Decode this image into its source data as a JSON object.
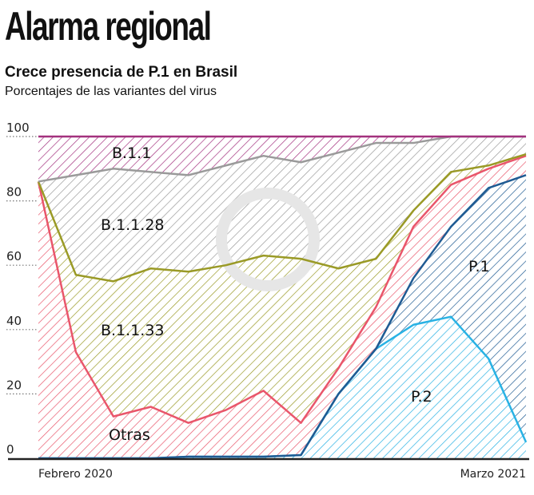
{
  "header": {
    "title": "Alarma regional",
    "subtitle": "Crece presencia de P.1 en Brasil",
    "description": "Porcentajes de las variantes del virus"
  },
  "chart_data": {
    "type": "area",
    "stacked": true,
    "title": "Crece presencia de P.1 en Brasil",
    "subtitle": "Porcentajes de las variantes del virus",
    "x_tick_labels": [
      "Febrero 2020",
      "Marzo 2021"
    ],
    "y_ticks": [
      0,
      20,
      40,
      60,
      80,
      100
    ],
    "ylim": [
      0,
      100
    ],
    "grid": false,
    "series": [
      {
        "name": "P.2",
        "color": "#29b2e4",
        "values": [
          0,
          0,
          0,
          0,
          0.5,
          0.5,
          0.5,
          1,
          20,
          34,
          41.5,
          44,
          31,
          5
        ]
      },
      {
        "name": "P.1",
        "color": "#1f5b93",
        "values": [
          0,
          0,
          0,
          0,
          0,
          0,
          0,
          0,
          0,
          0,
          14.5,
          28,
          53,
          83
        ]
      },
      {
        "name": "Otras",
        "color": "#e9566b",
        "values": [
          86,
          33,
          13,
          16,
          10.5,
          14.5,
          20.5,
          10,
          8,
          13,
          16,
          13,
          6,
          6
        ]
      },
      {
        "name": "B.1.1.33",
        "color": "#9a9a26",
        "values": [
          0,
          24,
          42,
          43,
          47,
          45,
          42,
          51,
          31,
          15,
          5,
          4,
          1,
          0.5
        ]
      },
      {
        "name": "B.1.1.28",
        "color": "#9a9a9a",
        "values": [
          0,
          31,
          35,
          30,
          30,
          31,
          31,
          30,
          36,
          36,
          21,
          11,
          9,
          5.5
        ]
      },
      {
        "name": "B.1.1",
        "color": "#a3317e",
        "values": [
          14,
          12,
          10,
          11,
          12,
          9,
          6,
          8,
          5,
          2,
          2,
          0,
          0,
          0
        ]
      }
    ]
  }
}
